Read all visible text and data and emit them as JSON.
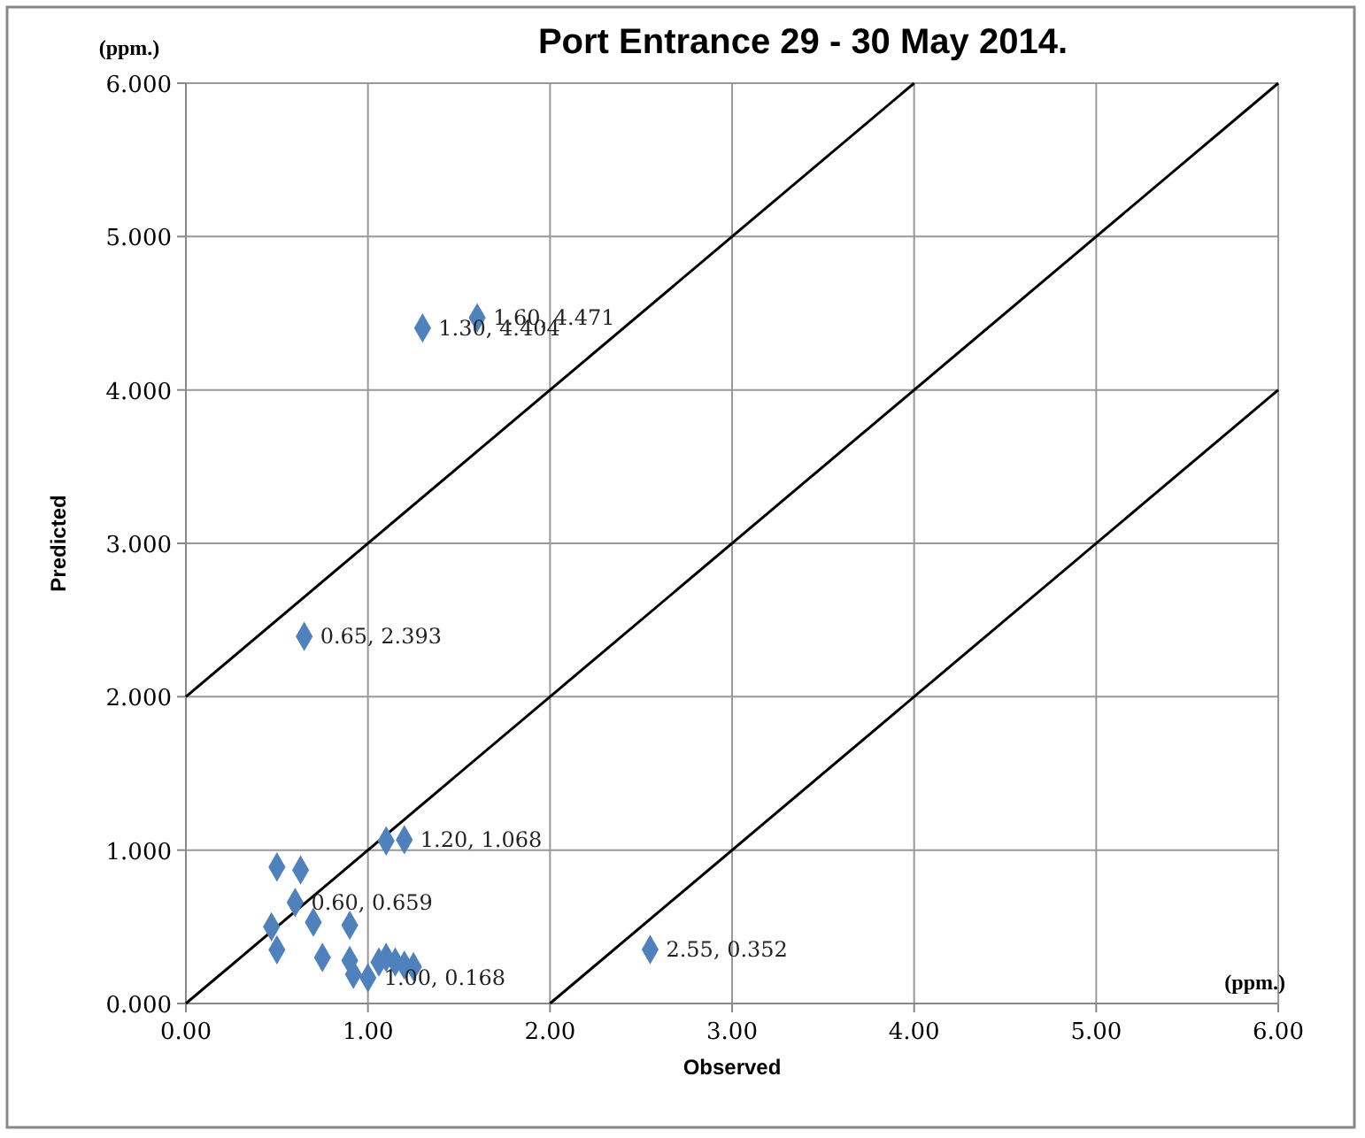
{
  "chart_data": {
    "type": "scatter",
    "title": "Port  Entrance 29 - 30 May 2014.",
    "xlabel": "Observed",
    "ylabel": "Predicted",
    "annotations": [
      "(ppm.)",
      "(ppm.)"
    ],
    "xlim": [
      0,
      6
    ],
    "ylim": [
      0,
      6
    ],
    "xticks": [
      {
        "value": 0,
        "label": "0.00"
      },
      {
        "value": 1,
        "label": "1.00"
      },
      {
        "value": 2,
        "label": "2.00"
      },
      {
        "value": 3,
        "label": "3.00"
      },
      {
        "value": 4,
        "label": "4.00"
      },
      {
        "value": 5,
        "label": "5.00"
      },
      {
        "value": 6,
        "label": "6.00"
      }
    ],
    "yticks": [
      {
        "value": 0,
        "label": "0.000"
      },
      {
        "value": 1,
        "label": "1.000"
      },
      {
        "value": 2,
        "label": "2.000"
      },
      {
        "value": 3,
        "label": "3.000"
      },
      {
        "value": 4,
        "label": "4.000"
      },
      {
        "value": 5,
        "label": "5.000"
      },
      {
        "value": 6,
        "label": "6.000"
      }
    ],
    "grid": true,
    "series": [
      {
        "type": "line",
        "color": "#000000",
        "marker": "none",
        "line_style": "solid",
        "x": [
          0,
          4
        ],
        "values": [
          2,
          6
        ]
      },
      {
        "type": "line",
        "color": "#000000",
        "marker": "none",
        "line_style": "solid",
        "x": [
          0,
          6
        ],
        "values": [
          0,
          6
        ]
      },
      {
        "type": "line",
        "color": "#000000",
        "marker": "none",
        "line_style": "solid",
        "x": [
          2,
          6
        ],
        "values": [
          0,
          4
        ]
      },
      {
        "color": "#4f81bd",
        "marker": "diamond",
        "x": [
          1.6,
          1.3,
          0.65,
          2.55,
          1.1,
          1.2,
          0.5,
          0.63,
          0.6,
          0.47,
          0.7,
          0.9,
          0.5,
          0.75,
          0.9,
          0.92,
          1.0,
          1.06,
          1.1,
          1.15,
          1.2,
          1.25
        ],
        "values": [
          4.471,
          4.404,
          2.393,
          0.352,
          1.06,
          1.068,
          0.89,
          0.87,
          0.659,
          0.5,
          0.53,
          0.51,
          0.35,
          0.3,
          0.28,
          0.19,
          0.168,
          0.27,
          0.3,
          0.27,
          0.25,
          0.24
        ],
        "value_labels": [
          "1.60, 4.471",
          "1.30, 4.404",
          "0.65, 2.393",
          "2.55, 0.352",
          null,
          "1.20, 1.068",
          null,
          null,
          "0.60, 0.659",
          null,
          null,
          null,
          null,
          null,
          null,
          null,
          "1.00, 0.168",
          null,
          null,
          null,
          null,
          null
        ]
      }
    ]
  }
}
